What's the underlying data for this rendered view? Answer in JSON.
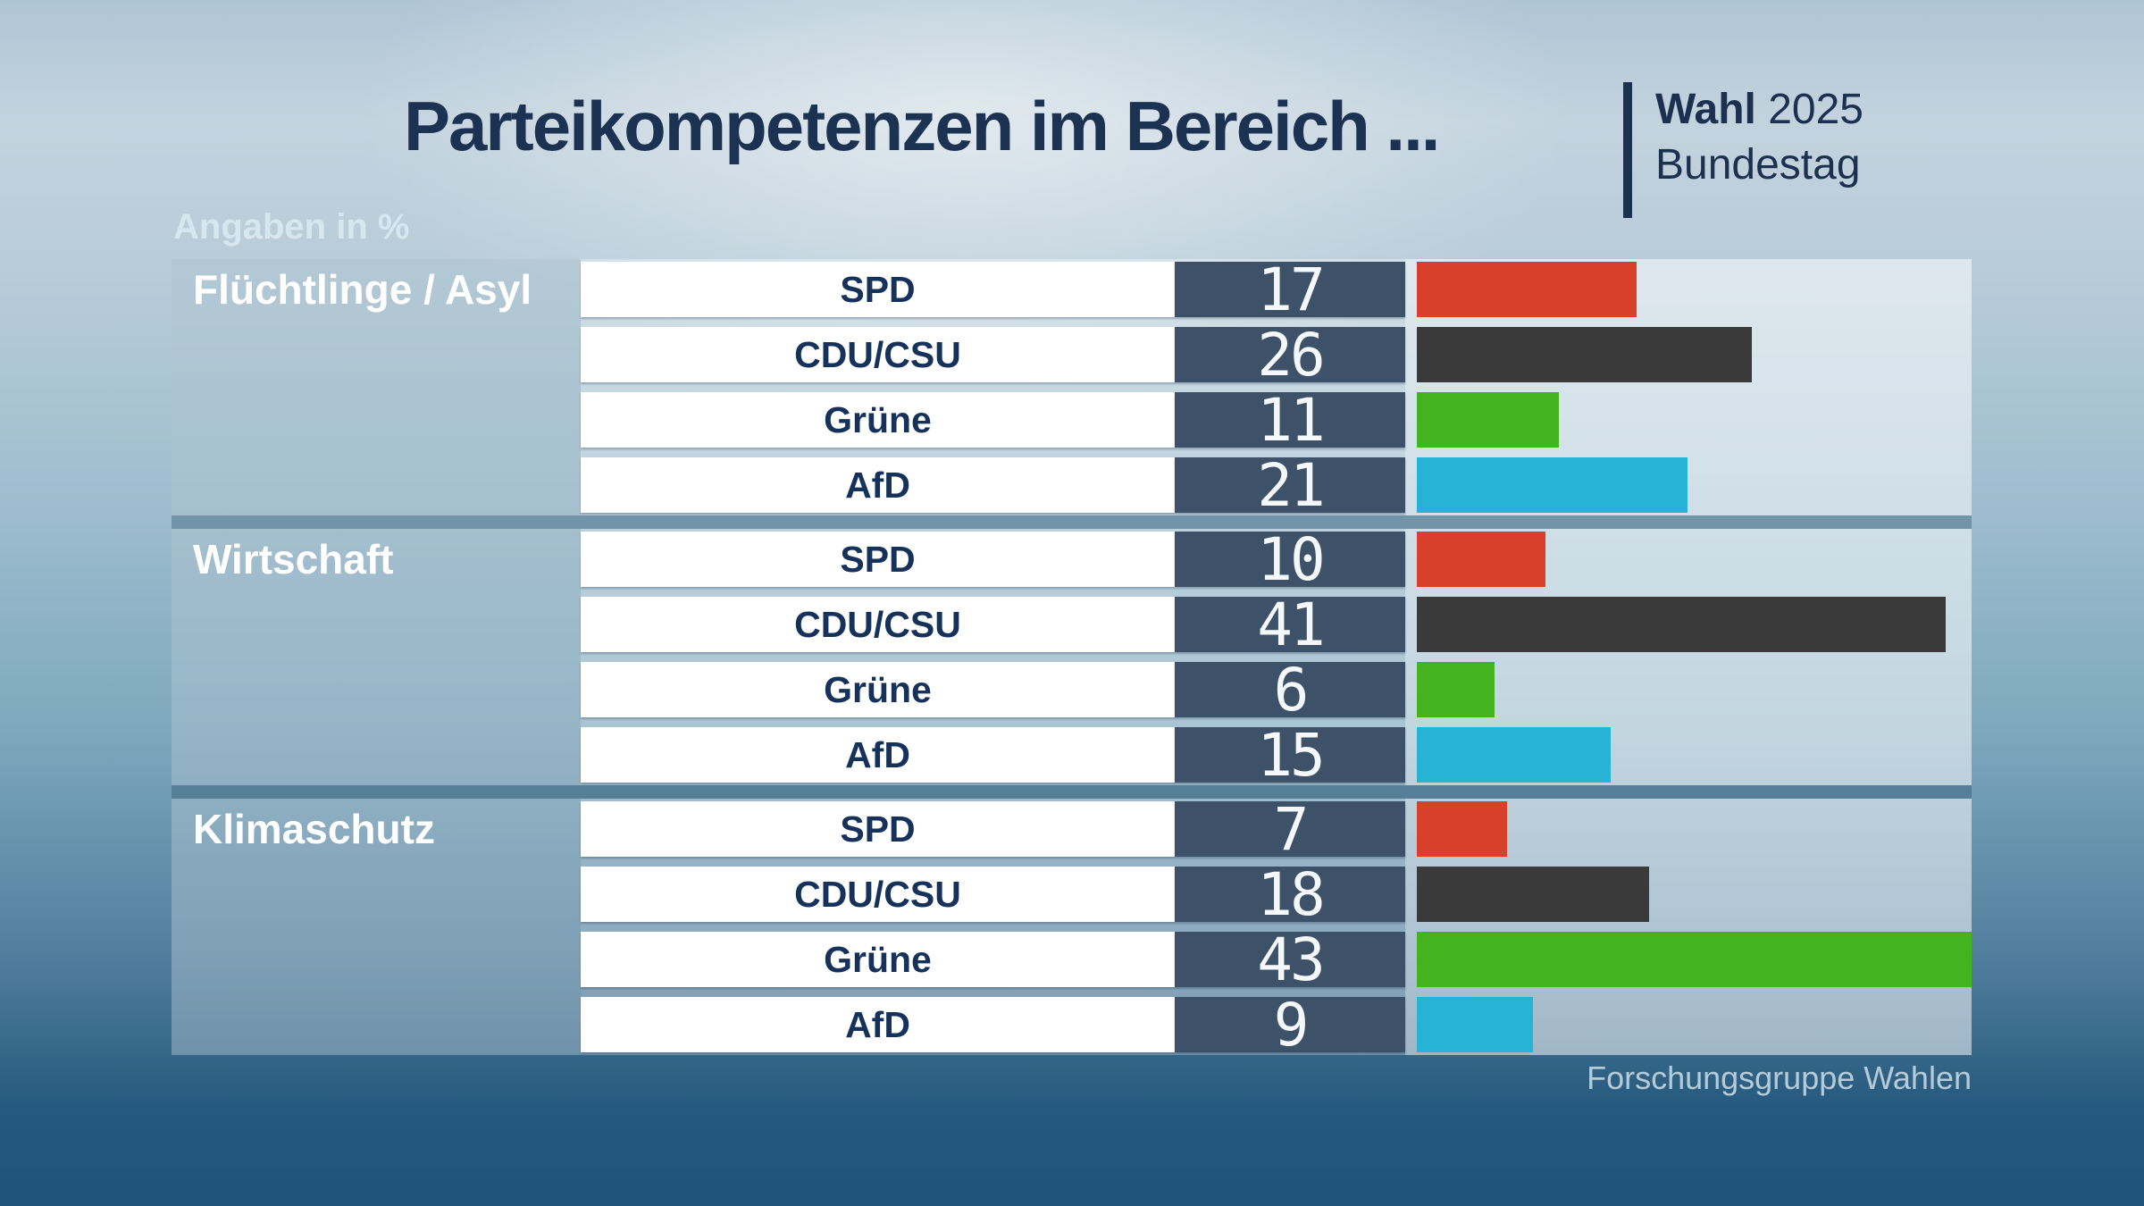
{
  "title": "Parteikompetenzen im Bereich ...",
  "brand": {
    "name_bold": "Wahl",
    "year": "2025",
    "line2": "Bundestag"
  },
  "units_label": "Angaben in %",
  "source": "Forschungsgruppe Wahlen",
  "colors": {
    "title_text": "#1b3252",
    "value_cell_bg": "#3d5269",
    "party_label_text": "#16325a",
    "spd": "#d8402c",
    "cdu_csu": "#3a3a3a",
    "gruene": "#43b31f",
    "afd": "#27b3d6",
    "background_bottom": "#1f5478"
  },
  "chart_data": {
    "type": "bar",
    "orientation": "horizontal",
    "unit": "%",
    "value_axis_max": 43,
    "grid": false,
    "legend": false,
    "categories": [
      "Flüchtlinge / Asyl",
      "Wirtschaft",
      "Klimaschutz"
    ],
    "parties": [
      "SPD",
      "CDU/CSU",
      "Grüne",
      "AfD"
    ],
    "groups": [
      {
        "label": "Flüchtlinge / Asyl",
        "rows": [
          {
            "id": "spd",
            "party": "SPD",
            "value": 17,
            "color": "#d8402c"
          },
          {
            "id": "cdu-csu",
            "party": "CDU/CSU",
            "value": 26,
            "color": "#3a3a3a"
          },
          {
            "id": "gruene",
            "party": "Grüne",
            "value": 11,
            "color": "#43b31f"
          },
          {
            "id": "afd",
            "party": "AfD",
            "value": 21,
            "color": "#27b3d6"
          }
        ]
      },
      {
        "label": "Wirtschaft",
        "rows": [
          {
            "id": "spd",
            "party": "SPD",
            "value": 10,
            "color": "#d8402c"
          },
          {
            "id": "cdu-csu",
            "party": "CDU/CSU",
            "value": 41,
            "color": "#3a3a3a"
          },
          {
            "id": "gruene",
            "party": "Grüne",
            "value": 6,
            "color": "#43b31f"
          },
          {
            "id": "afd",
            "party": "AfD",
            "value": 15,
            "color": "#27b3d6"
          }
        ]
      },
      {
        "label": "Klimaschutz",
        "rows": [
          {
            "id": "spd",
            "party": "SPD",
            "value": 7,
            "color": "#d8402c"
          },
          {
            "id": "cdu-csu",
            "party": "CDU/CSU",
            "value": 18,
            "color": "#3a3a3a"
          },
          {
            "id": "gruene",
            "party": "Grüne",
            "value": 43,
            "color": "#43b31f"
          },
          {
            "id": "afd",
            "party": "AfD",
            "value": 9,
            "color": "#27b3d6"
          }
        ]
      }
    ]
  }
}
